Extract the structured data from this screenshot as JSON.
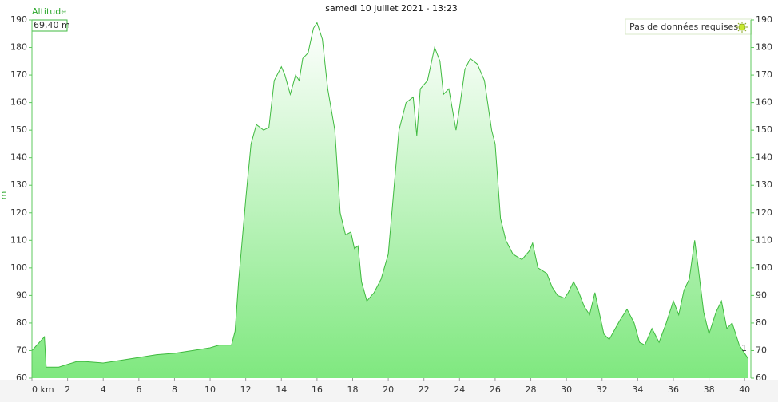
{
  "chart_data": {
    "type": "area",
    "title": "samedi 10 juillet 2021 - 13:23",
    "ylabel": "m",
    "cursor_value": "69,40 m",
    "legend_text": "Pas de données requises",
    "marker_label": "1",
    "x": [
      0,
      0.7,
      0.8,
      1.5,
      2,
      2.5,
      3,
      4,
      5,
      6,
      7,
      8,
      9,
      10,
      10.5,
      11.2,
      11.4,
      11.6,
      12,
      12.3,
      12.6,
      13,
      13.3,
      13.6,
      14,
      14.2,
      14.5,
      14.8,
      15,
      15.2,
      15.5,
      15.8,
      16,
      16.3,
      16.6,
      17,
      17.3,
      17.6,
      17.9,
      18.1,
      18.3,
      18.5,
      18.8,
      19.2,
      19.6,
      20,
      20.2,
      20.6,
      21,
      21.4,
      21.6,
      21.8,
      22.2,
      22.6,
      22.9,
      23.1,
      23.4,
      23.8,
      24,
      24.3,
      24.6,
      25,
      25.4,
      25.8,
      26,
      26.3,
      26.6,
      27,
      27.5,
      27.9,
      28.1,
      28.4,
      28.9,
      29.2,
      29.5,
      29.9,
      30.1,
      30.4,
      30.7,
      31,
      31.3,
      31.6,
      31.8,
      32.1,
      32.4,
      33,
      33.4,
      33.8,
      34.1,
      34.4,
      34.8,
      35.2,
      35.6,
      36,
      36.3,
      36.6,
      36.9,
      37.2,
      37.4,
      37.7,
      38,
      38.4,
      38.7,
      39,
      39.3,
      39.7,
      40.2
    ],
    "series": [
      {
        "name": "Altitude",
        "color": "#3fba3f",
        "values": [
          70,
          75,
          64,
          64,
          65,
          66,
          66,
          65.5,
          66.5,
          67.5,
          68.5,
          69,
          70,
          71,
          72,
          72,
          77,
          95,
          125,
          145,
          152,
          150,
          151,
          168,
          173,
          170,
          163,
          170,
          168,
          176,
          178,
          187,
          189,
          183,
          165,
          150,
          120,
          112,
          113,
          107,
          108,
          95,
          88,
          91,
          96,
          105,
          120,
          150,
          160,
          162,
          148,
          165,
          168,
          180,
          175,
          163,
          165,
          150,
          158,
          172,
          176,
          174,
          168,
          150,
          145,
          118,
          110,
          105,
          103,
          106,
          109,
          100,
          98,
          93,
          90,
          89,
          91,
          95,
          91,
          86,
          83,
          91,
          85,
          76,
          74,
          81,
          85,
          80,
          73,
          72,
          78,
          73,
          80,
          88,
          83,
          92,
          96,
          110,
          100,
          84,
          76,
          84,
          88,
          78,
          80,
          72,
          67
        ]
      }
    ],
    "xlim": [
      0,
      40.35
    ],
    "ylim": [
      60,
      190
    ],
    "xticks": [
      {
        "value": 0,
        "label": "0 km"
      },
      2,
      4,
      6,
      8,
      10,
      12,
      14,
      16,
      18,
      20,
      22,
      24,
      26,
      28,
      30,
      32,
      34,
      36,
      38,
      40
    ],
    "yticks": [
      60,
      70,
      80,
      90,
      100,
      110,
      120,
      130,
      140,
      150,
      160,
      170,
      180,
      190
    ]
  }
}
